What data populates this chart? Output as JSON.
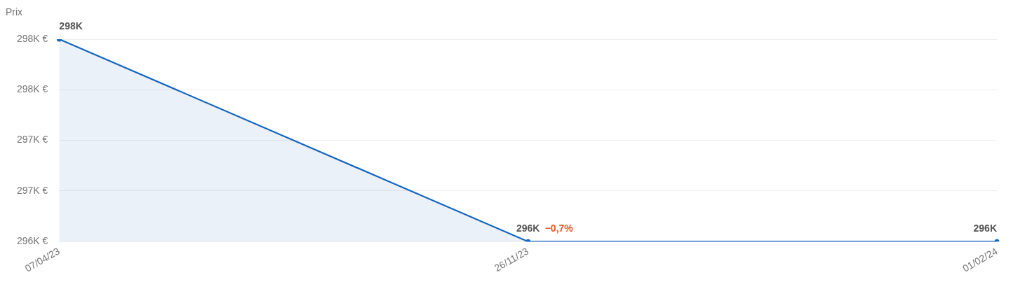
{
  "chart_data": {
    "type": "area",
    "ylabel": "Prix",
    "categories": [
      "07/04/23",
      "26/11/23",
      "01/02/24"
    ],
    "series": [
      {
        "color": "#1565c0",
        "values": [
          298000,
          296000,
          296000
        ],
        "value_labels": [
          "298K",
          "296K",
          "296K"
        ]
      }
    ],
    "ylim": [
      296000,
      298000
    ],
    "yticks": [
      {
        "value": 296000,
        "label": "296K €"
      },
      {
        "value": 296500,
        "label": "297K €"
      },
      {
        "value": 297000,
        "label": "297K €"
      },
      {
        "value": 297500,
        "label": "298K €"
      },
      {
        "value": 298000,
        "label": "298K €"
      }
    ],
    "annotations": [
      {
        "text": "−0,7%",
        "x": "26/11/23",
        "y": 296000
      }
    ],
    "grid": "y",
    "marker": "circle",
    "legend": false
  }
}
